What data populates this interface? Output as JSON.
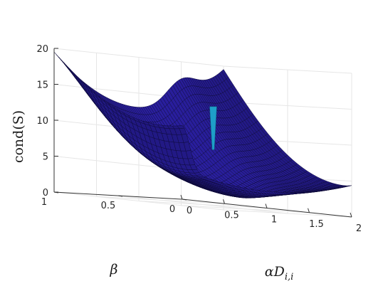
{
  "chart_data": {
    "type": "surface3d",
    "title": "",
    "xlabel": "αD",
    "xlabel_sub": "i,i",
    "ylabel": "β",
    "zlabel": "cond(S)",
    "xlim": [
      0,
      2
    ],
    "ylim": [
      0,
      1
    ],
    "zlim": [
      0,
      20
    ],
    "x_ticks": [
      "0",
      "0.5",
      "1",
      "1.5",
      "2"
    ],
    "y_ticks": [
      "0",
      "0.5",
      "1"
    ],
    "z_ticks": [
      "0",
      "5",
      "10",
      "15",
      "20"
    ],
    "grid": true,
    "colors": {
      "surface": "#2a1f8c",
      "surface_edge": "#0d0a38",
      "spike": "#1e9fc8",
      "box_line": "#e6e6e6",
      "axis_line": "#333333"
    },
    "surface_samples": [
      {
        "x": 0.0,
        "y": 1.0,
        "z": 20
      },
      {
        "x": 0.0,
        "y": 0.5,
        "z": 11
      },
      {
        "x": 0.0,
        "y": 0.0,
        "z": 7
      },
      {
        "x": 1.0,
        "y": 1.0,
        "z": 13
      },
      {
        "x": 1.0,
        "y": 0.5,
        "z": 3
      },
      {
        "x": 1.0,
        "y": 0.0,
        "z": 7
      },
      {
        "x": 2.0,
        "y": 1.0,
        "z": 19
      },
      {
        "x": 2.0,
        "y": 0.5,
        "z": 9
      },
      {
        "x": 2.0,
        "y": 0.0,
        "z": 2.5
      }
    ],
    "spike": {
      "x": 1.5,
      "y": 0.75,
      "z_top": 14,
      "z_bottom": 8
    }
  }
}
